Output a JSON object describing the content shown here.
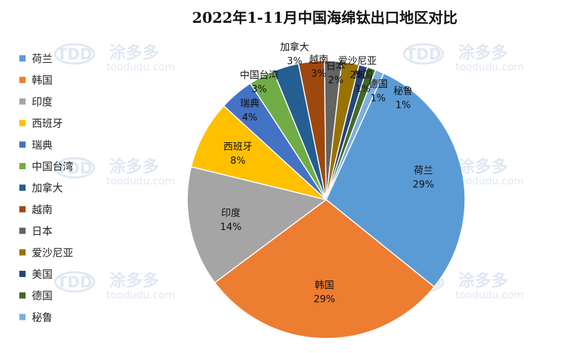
{
  "chart_data": {
    "type": "pie",
    "title": "2022年1-11月中国海绵钛出口地区对比",
    "legend_position": "left",
    "slices": [
      {
        "name": "荷兰",
        "value": 29,
        "label": "29%",
        "color": "#5B9BD5"
      },
      {
        "name": "韩国",
        "value": 29,
        "label": "29%",
        "color": "#ED7D31"
      },
      {
        "name": "印度",
        "value": 14,
        "label": "14%",
        "color": "#A5A5A5"
      },
      {
        "name": "西班牙",
        "value": 8,
        "label": "8%",
        "color": "#FFC000"
      },
      {
        "name": "瑞典",
        "value": 4,
        "label": "4%",
        "color": "#4472C4"
      },
      {
        "name": "中国台湾",
        "value": 3,
        "label": "3%",
        "color": "#70AD47"
      },
      {
        "name": "加拿大",
        "value": 3,
        "label": "3%",
        "color": "#255E91"
      },
      {
        "name": "越南",
        "value": 3,
        "label": "3%",
        "color": "#9E480E"
      },
      {
        "name": "日本",
        "value": 2,
        "label": "2%",
        "color": "#636363"
      },
      {
        "name": "爱沙尼亚",
        "value": 2,
        "label": "2%",
        "color": "#997300"
      },
      {
        "name": "美国",
        "value": 1,
        "label": "1%",
        "color": "#264478"
      },
      {
        "name": "德国",
        "value": 1,
        "label": "1%",
        "color": "#43682B"
      },
      {
        "name": "秘鲁",
        "value": 1,
        "label": "1%",
        "color": "#7CAFDD"
      }
    ]
  },
  "watermark": {
    "brand": "涂多多",
    "site": "toodudu.com",
    "logo": "TDD"
  }
}
